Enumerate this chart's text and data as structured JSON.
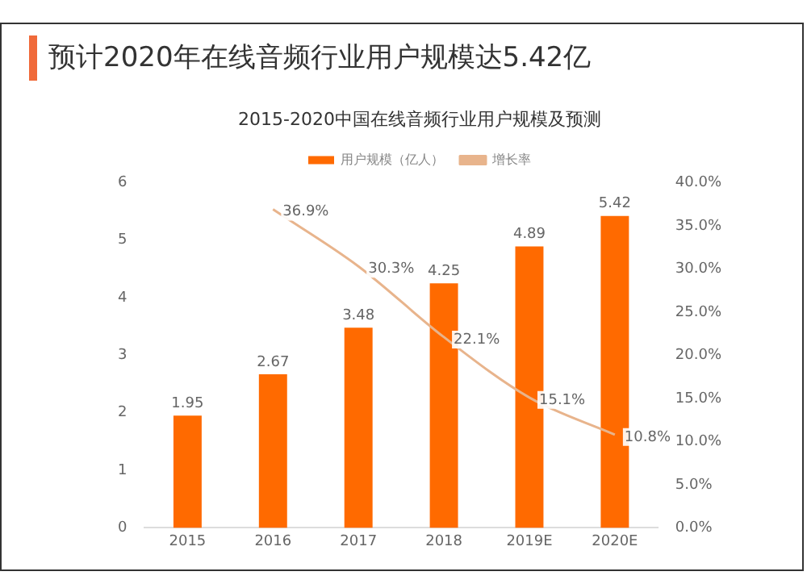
{
  "chart_data": {
    "type": "bar",
    "title": "预计2020年在线音频行业用户规模达5.42亿",
    "subtitle": "2015-2020中国在线音频行业用户规模及预测",
    "categories": [
      "2015",
      "2016",
      "2017",
      "2018",
      "2019E",
      "2020E"
    ],
    "series": [
      {
        "name": "用户规模（亿人）",
        "color": "#ff6a00",
        "values": [
          1.95,
          2.67,
          3.48,
          4.25,
          4.89,
          5.42
        ],
        "value_labels": [
          "1.95",
          "2.67",
          "3.48",
          "4.25",
          "4.89",
          "5.42"
        ]
      },
      {
        "name": "增长率",
        "type": "line",
        "axis": "y2",
        "color": "#e8b48c",
        "values": [
          null,
          36.9,
          30.3,
          22.1,
          15.1,
          10.8
        ],
        "value_labels": [
          null,
          "36.9%",
          "30.3%",
          "22.1%",
          "15.1%",
          "10.8%"
        ]
      }
    ],
    "ylim": [
      0,
      6
    ],
    "yticks": [
      0,
      1,
      2,
      3,
      4,
      5,
      6
    ],
    "y2lim": [
      0,
      40
    ],
    "y2ticks": [
      {
        "value": 0,
        "label": "0.0%"
      },
      {
        "value": 5,
        "label": "5.0%"
      },
      {
        "value": 10,
        "label": "10.0%"
      },
      {
        "value": 15,
        "label": "15.0%"
      },
      {
        "value": 20,
        "label": "20.0%"
      },
      {
        "value": 25,
        "label": "25.0%"
      },
      {
        "value": 30,
        "label": "30.0%"
      },
      {
        "value": 35,
        "label": "35.0%"
      },
      {
        "value": 40,
        "label": "40.0%"
      }
    ],
    "legend": "top",
    "grid": false,
    "marker": "none",
    "line_style": "solid"
  }
}
